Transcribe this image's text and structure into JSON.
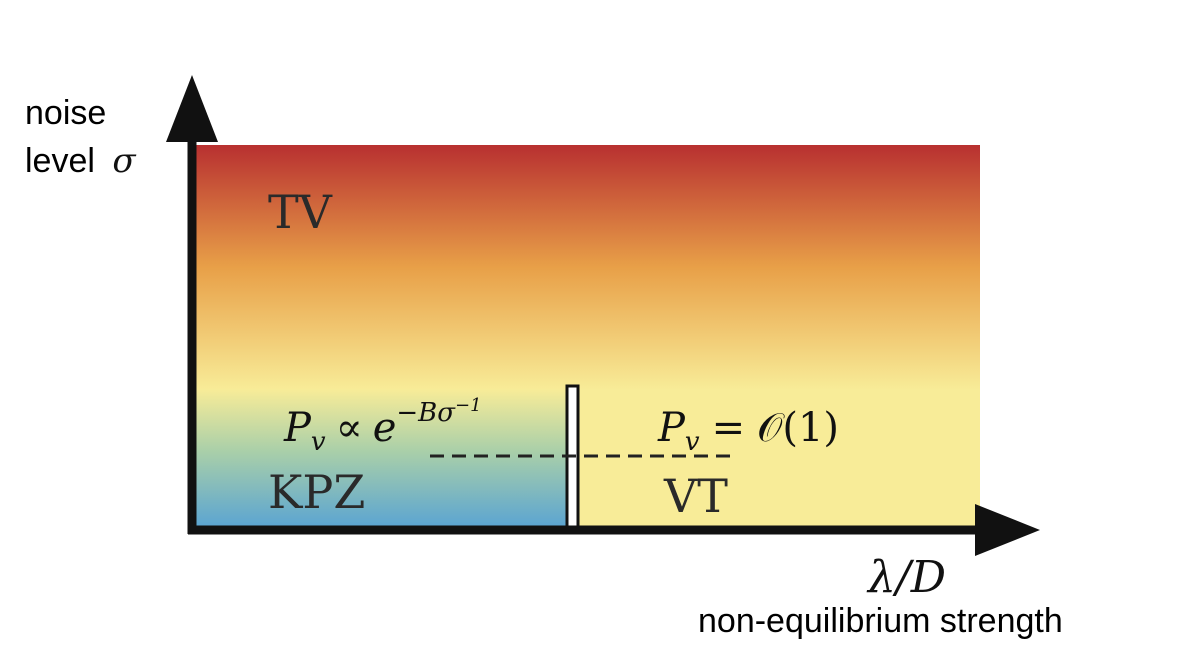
{
  "y_axis": {
    "label_line1": "noise",
    "label_line2": "level",
    "symbol": "σ"
  },
  "x_axis": {
    "symbol": "λ/D",
    "caption": "non-equilibrium strength"
  },
  "regions": {
    "tv": "TV",
    "kpz": "KPZ",
    "vt": "VT"
  },
  "formulas": {
    "left": {
      "base": "P",
      "sub": "v",
      "rel": "∝",
      "exp_base": "e",
      "exp": "−Bσ",
      "exp_sup": "−1"
    },
    "right": {
      "base": "P",
      "sub": "v",
      "rel": "=",
      "rhs": "𝒪(1)"
    }
  },
  "colors": {
    "top": "#b83030",
    "middle": "#e8a048",
    "yellow": "#f8ec98",
    "blue": "#5aa4d2",
    "axis": "#111111"
  }
}
